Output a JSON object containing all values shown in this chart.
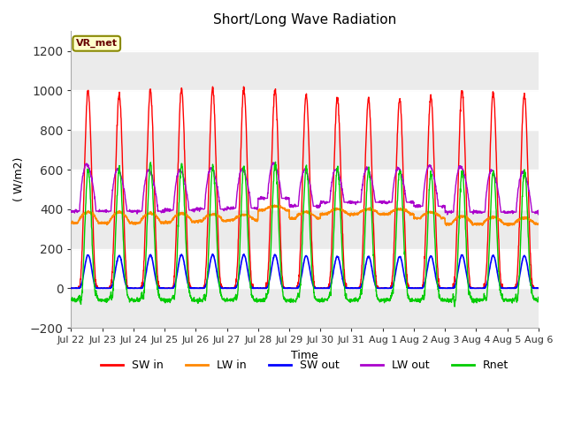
{
  "title": "Short/Long Wave Radiation",
  "ylabel": "( W/m2)",
  "xlabel": "Time",
  "ylim": [
    -200,
    1300
  ],
  "yticks": [
    -200,
    0,
    200,
    400,
    600,
    800,
    1000,
    1200
  ],
  "annotation": "VR_met",
  "legend": [
    "SW in",
    "LW in",
    "SW out",
    "LW out",
    "Rnet"
  ],
  "colors": [
    "red",
    "#ff8800",
    "blue",
    "#aa00cc",
    "#00cc00"
  ],
  "xtick_labels": [
    "Jul 22",
    "Jul 23",
    "Jul 24",
    "Jul 25",
    "Jul 26",
    "Jul 27",
    "Jul 28",
    "Jul 29",
    "Jul 30",
    "Jul 31",
    "Aug 1",
    "Aug 2",
    "Aug 3",
    "Aug 4",
    "Aug 5",
    "Aug 6"
  ],
  "n_days": 15,
  "pts_per_day": 144,
  "sw_peaks": [
    1000,
    980,
    1000,
    1010,
    1010,
    1005,
    1005,
    975,
    960,
    960,
    960,
    975,
    1000,
    985,
    980
  ],
  "lw_in_base": [
    330,
    330,
    330,
    335,
    340,
    345,
    395,
    355,
    375,
    375,
    375,
    355,
    325,
    325,
    325
  ],
  "lw_in_peak": [
    385,
    385,
    380,
    380,
    375,
    370,
    415,
    385,
    400,
    400,
    400,
    385,
    365,
    360,
    355
  ],
  "lw_out_peak": [
    620,
    595,
    590,
    590,
    600,
    595,
    625,
    590,
    595,
    600,
    600,
    615,
    610,
    590,
    580
  ]
}
